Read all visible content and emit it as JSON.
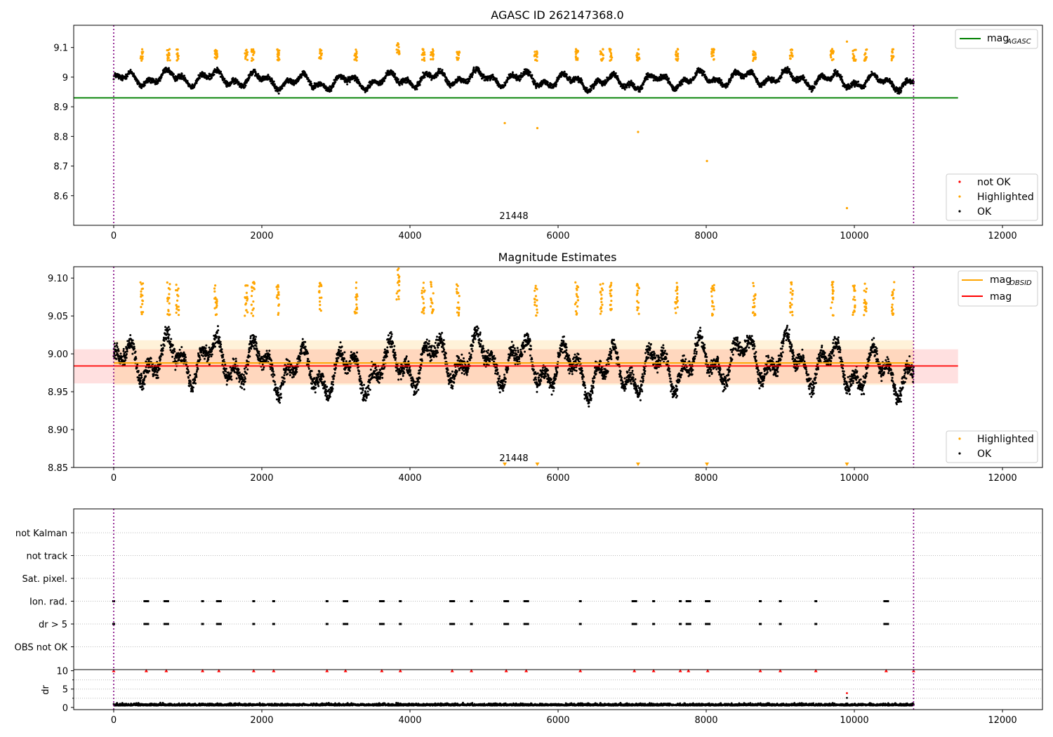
{
  "chart_data": [
    {
      "type": "scatter",
      "title": "AGASC ID 262147368.0",
      "xlim": [
        -540,
        12540
      ],
      "ylim": [
        8.5,
        9.175
      ],
      "xticks": [
        0,
        2000,
        4000,
        6000,
        8000,
        10000,
        12000
      ],
      "yticks": [
        8.6,
        8.7,
        8.8,
        8.9,
        9.0,
        9.1
      ],
      "annotation": "21448",
      "reference_lines": {
        "mag_AGASC": 8.93,
        "obs_boundaries_x": [
          0,
          10800
        ]
      },
      "legend_top": {
        "placement": "top-right",
        "entries": [
          {
            "label": "mag",
            "subscript": "AGASC",
            "color": "#008000"
          }
        ]
      },
      "legend_bottom": {
        "placement": "bottom-right",
        "entries": [
          {
            "label": "not OK",
            "color": "#ff0000"
          },
          {
            "label": "Highlighted",
            "color": "#ffa500"
          },
          {
            "label": "OK",
            "color": "#000000"
          }
        ]
      },
      "series": [
        {
          "name": "OK",
          "color": "#000000",
          "baseline": 8.99,
          "spread": 0.03,
          "x_range": [
            0,
            10800
          ]
        },
        {
          "name": "Highlighted",
          "color": "#ffa500",
          "clusters_x": [
            380,
            740,
            860,
            1380,
            1790,
            1880,
            2220,
            2790,
            3270,
            3840,
            4180,
            4300,
            4650,
            5700,
            6250,
            6590,
            6710,
            7080,
            7600,
            8090,
            8650,
            9150,
            9700,
            10000,
            10150,
            10520
          ]
        },
        {
          "name": "not OK",
          "color": "#ff0000",
          "points": []
        }
      ],
      "outliers": [
        {
          "x": 5280,
          "y": 8.845
        },
        {
          "x": 5720,
          "y": 8.828
        },
        {
          "x": 7080,
          "y": 8.815
        },
        {
          "x": 8010,
          "y": 8.717
        },
        {
          "x": 9900,
          "y": 8.558
        },
        {
          "x": 9900,
          "y": 9.12
        }
      ]
    },
    {
      "type": "scatter",
      "title": "Magnitude Estimates",
      "xlim": [
        -540,
        12540
      ],
      "ylim": [
        8.85,
        9.115
      ],
      "xticks": [
        0,
        2000,
        4000,
        6000,
        8000,
        10000,
        12000
      ],
      "yticks": [
        8.85,
        8.9,
        8.95,
        9.0,
        9.05,
        9.1
      ],
      "ytick_labels": [
        "8.85",
        "8.90",
        "8.95",
        "9.00",
        "9.05",
        "9.10"
      ],
      "annotation": "21448",
      "reference_lines": {
        "mag_OBSID": 8.988,
        "mag": 8.984,
        "mag_band": [
          8.961,
          9.006
        ],
        "obs_band": [
          8.959,
          9.018
        ],
        "obs_boundaries_x": [
          0,
          10800
        ]
      },
      "legend_top": {
        "placement": "top-right",
        "entries": [
          {
            "label": "mag",
            "subscript": "OBSID",
            "color": "#ffa500"
          },
          {
            "label": "mag",
            "subscript": "",
            "color": "#ff0000"
          }
        ]
      },
      "legend_bottom": {
        "placement": "bottom-right",
        "entries": [
          {
            "label": "Highlighted",
            "color": "#ffa500"
          },
          {
            "label": "OK",
            "color": "#000000"
          }
        ]
      },
      "offscale_markers_x": [
        5280,
        5720,
        7080,
        8010,
        9900
      ]
    },
    {
      "type": "scatter",
      "title": "",
      "categories": [
        "not Kalman",
        "not track",
        "Sat. pixel.",
        "Ion. rad.",
        "dr > 5",
        "OBS not OK"
      ],
      "flag_x": [
        0,
        440,
        710,
        1200,
        1420,
        1890,
        2160,
        2880,
        3130,
        3620,
        3870,
        4570,
        4830,
        5300,
        5570,
        6300,
        7030,
        7290,
        7650,
        7760,
        8020,
        8730,
        9000,
        9480,
        10430
      ],
      "xlim": [
        -540,
        12540
      ],
      "xticks": [
        0,
        2000,
        4000,
        6000,
        8000,
        10000,
        12000
      ]
    },
    {
      "type": "scatter",
      "title": "",
      "ylabel": "dr",
      "ylim": [
        -0.6,
        10.3
      ],
      "yticks": [
        0,
        5,
        10
      ],
      "xlim": [
        -540,
        12540
      ],
      "xticks": [
        0,
        2000,
        4000,
        6000,
        8000,
        10000,
        12000
      ],
      "dr_baseline": 0.5,
      "dr_outliers": [
        {
          "x": 9900,
          "y": 3.9
        },
        {
          "x": 9900,
          "y": 2.6
        }
      ],
      "capped_red_x": [
        0,
        440,
        710,
        1200,
        1420,
        1890,
        2160,
        2880,
        3130,
        3620,
        3870,
        4570,
        4830,
        5300,
        5570,
        6300,
        7030,
        7290,
        7650,
        7760,
        8020,
        8730,
        9000,
        9480,
        10430,
        10800
      ],
      "capped_value": 10
    }
  ]
}
